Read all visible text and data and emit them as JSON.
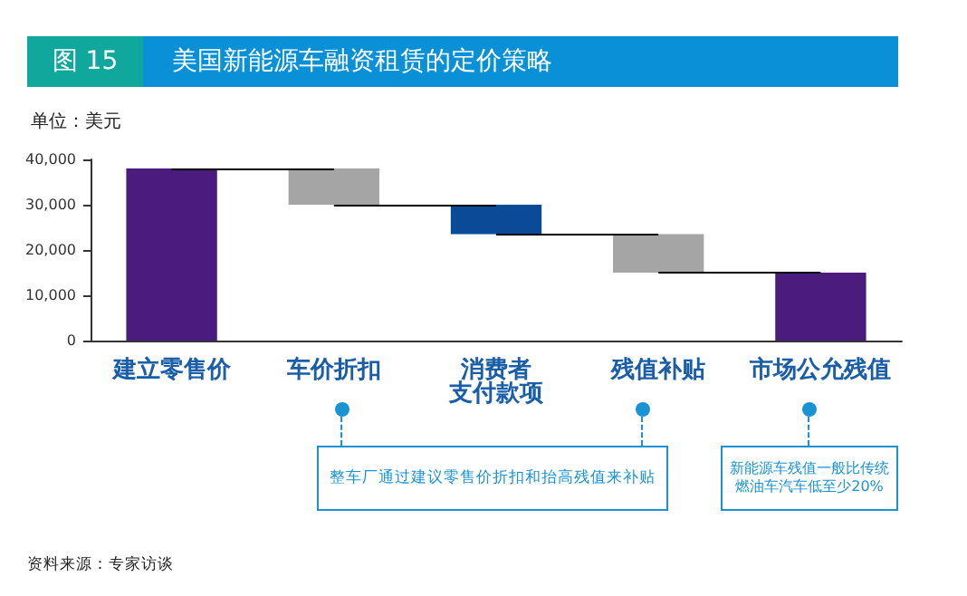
{
  "chart_data": {
    "type": "bar",
    "title": "美国新能源车融资租赁的定价策略",
    "subtitle": "图 15",
    "ylabel": "单位：美元",
    "categories": [
      "建立零售价",
      "车价折扣",
      "消费者支付款项",
      "残值补贴",
      "市场公允残值"
    ],
    "values": [
      38000,
      8000,
      6500,
      8500,
      15000
    ],
    "base": [
      0,
      30000,
      23500,
      15000,
      0
    ],
    "colors": [
      "#4b1c7d",
      "#a5a5a5",
      "#0b4a97",
      "#a5a5a5",
      "#4b1c7d"
    ],
    "ylim": [
      0,
      40000
    ],
    "yticks": [
      {
        "value": 0,
        "label": "0"
      },
      {
        "value": 10000,
        "label": "10,000"
      },
      {
        "value": 20000,
        "label": "20,000"
      },
      {
        "value": 30000,
        "label": "30,000"
      },
      {
        "value": 40000,
        "label": "40,000"
      }
    ],
    "grid": false,
    "ref_lines": [
      {
        "axis": "y",
        "value": 38000,
        "color": "#000000"
      },
      {
        "axis": "y",
        "value": 30000,
        "color": "#000000"
      },
      {
        "axis": "y",
        "value": 23500,
        "color": "#000000"
      },
      {
        "axis": "y",
        "value": 15000,
        "color": "#000000"
      }
    ],
    "annotations": [
      "整车厂通过建议零售价折扣和抬高残值来补贴",
      "新能源车残值一般比传统燃油车汽车低至少20%",
      "资料来源：专家访谈"
    ]
  }
}
